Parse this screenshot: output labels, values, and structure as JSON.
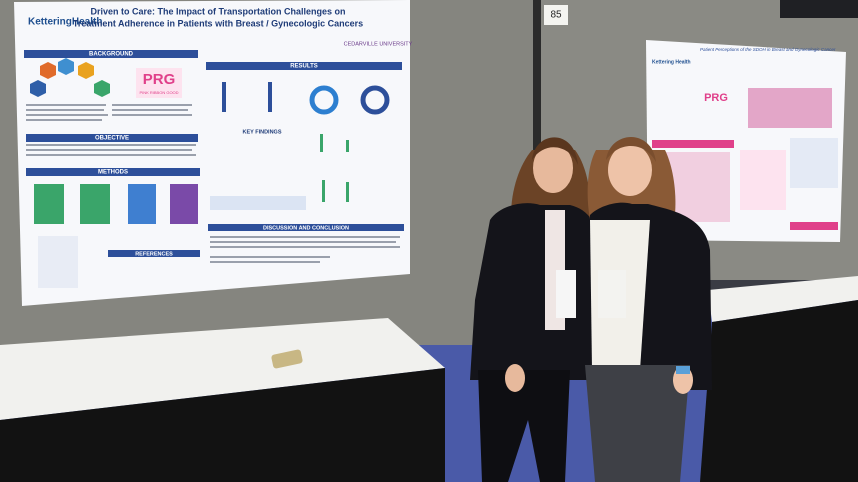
{
  "booth_number": "85",
  "left_poster": {
    "logo": "KetteringHealth",
    "title_line1": "Driven to Care: The Impact of Transportation Challenges on",
    "title_line2": "Treatment Adherence in Patients with Breast / Gynecologic Cancers",
    "university": "CEDARVILLE UNIVERSITY",
    "badge": "PRG",
    "badge_sub": "PINK RIBBON GOOD",
    "sections": [
      "BACKGROUND",
      "OBJECTIVE",
      "METHODS",
      "REFERENCES",
      "RESULTS",
      "KEY FINDINGS",
      "DISCUSSION AND CONCLUSION"
    ]
  },
  "right_poster": {
    "title": "Patient Perceptions of the SDOH in Breast and Gynecologic Cancer",
    "logo": "Kettering Health",
    "badge": "PRG"
  }
}
